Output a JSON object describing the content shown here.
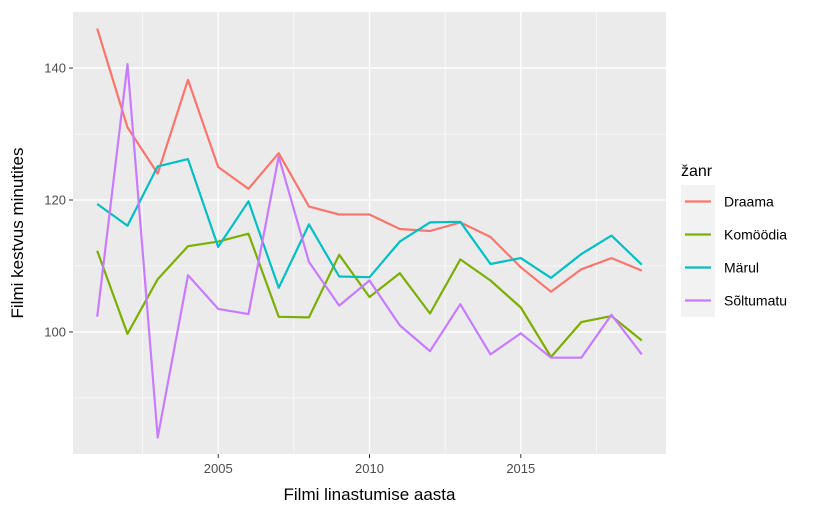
{
  "chart_data": {
    "type": "line",
    "title": "",
    "xlabel": "Filmi linastumise aasta",
    "ylabel": "Filmi kestvus minutites",
    "xlim": [
      2000.2,
      2019.8
    ],
    "ylim": [
      81.5,
      148.5
    ],
    "x_ticks": [
      2005,
      2010,
      2015
    ],
    "x_tick_labels": [
      "2005",
      "2010",
      "2015"
    ],
    "y_ticks": [
      100,
      120,
      140
    ],
    "y_tick_labels": [
      "100",
      "120",
      "140"
    ],
    "grid": true,
    "legend": {
      "title": "žanr",
      "position": "right"
    },
    "x": [
      2001,
      2002,
      2003,
      2004,
      2005,
      2006,
      2007,
      2008,
      2009,
      2010,
      2011,
      2012,
      2013,
      2014,
      2015,
      2016,
      2017,
      2018,
      2019
    ],
    "series": [
      {
        "name": "Draama",
        "color": "#F8766D",
        "values": [
          146,
          131,
          124,
          138.2,
          125,
          121.7,
          127.1,
          119,
          117.8,
          117.8,
          115.6,
          115.3,
          116.6,
          114.4,
          109.8,
          106.1,
          109.5,
          111.2,
          109.3
        ]
      },
      {
        "name": "Komöödia",
        "color": "#7CAE00",
        "values": [
          112.3,
          99.7,
          108,
          113,
          113.7,
          114.9,
          102.3,
          102.2,
          111.7,
          105.3,
          108.9,
          102.8,
          111,
          107.8,
          103.7,
          96.2,
          101.5,
          102.4,
          98.7
        ]
      },
      {
        "name": "Märul",
        "color": "#00BFC4",
        "values": [
          119.4,
          116.1,
          125.1,
          126.2,
          112.9,
          119.8,
          106.7,
          116.3,
          108.4,
          108.3,
          113.7,
          116.6,
          116.7,
          110.3,
          111.2,
          108.2,
          111.8,
          114.6,
          110.2
        ]
      },
      {
        "name": "Sõltumatu",
        "color": "#C77CFF",
        "values": [
          102.3,
          140.6,
          84,
          108.6,
          103.5,
          102.7,
          126.6,
          110.6,
          104,
          107.8,
          101,
          97.1,
          104.2,
          96.6,
          99.8,
          96.1,
          96.1,
          102.6,
          96.6
        ]
      }
    ]
  }
}
